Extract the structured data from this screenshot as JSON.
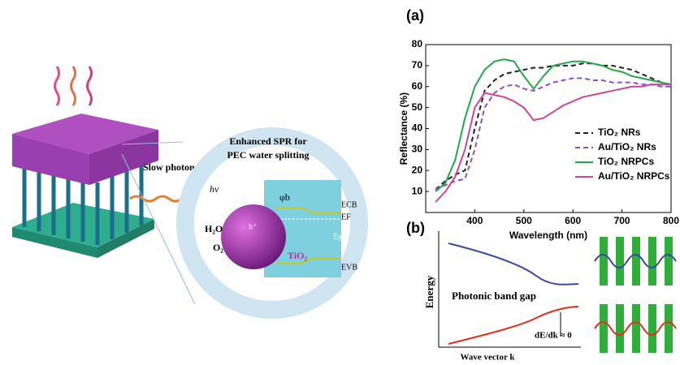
{
  "figure": {
    "panel_a": "(a)",
    "panel_b": "(b)"
  },
  "chart_data": {
    "type": "line",
    "xlabel": "Wavelength (nm)",
    "ylabel": "Reflectance (%)",
    "xlim": [
      300,
      800
    ],
    "xticks": [
      400,
      500,
      600,
      700,
      800
    ],
    "ylim": [
      0,
      80
    ],
    "yticks": [
      10,
      20,
      30,
      40,
      50,
      60,
      70,
      80
    ],
    "x": [
      320,
      340,
      360,
      380,
      400,
      420,
      440,
      460,
      480,
      500,
      520,
      540,
      560,
      580,
      600,
      620,
      640,
      660,
      680,
      700,
      720,
      740,
      760,
      780,
      800
    ],
    "series": [
      {
        "name": "TiO₂ NRs",
        "color": "#222222",
        "dashed": true,
        "values": [
          11,
          15,
          18,
          20,
          40,
          58,
          63,
          66,
          67,
          68,
          69,
          69,
          70,
          70,
          70,
          71,
          71,
          70,
          70,
          69,
          68,
          66,
          64,
          62,
          61
        ]
      },
      {
        "name": "Au/TiO₂ NRs",
        "color": "#8a4fd0",
        "dashed": true,
        "values": [
          11,
          13,
          15,
          16,
          30,
          50,
          57,
          60,
          61,
          59,
          58,
          60,
          62,
          63,
          64,
          64,
          63,
          63,
          62,
          62,
          62,
          61,
          61,
          60,
          60
        ]
      },
      {
        "name": "TiO₂ NRPCs",
        "color": "#22a84a",
        "dashed": false,
        "values": [
          10,
          14,
          25,
          45,
          60,
          68,
          72,
          73,
          72,
          65,
          59,
          65,
          70,
          71,
          72,
          72,
          71,
          70,
          68,
          67,
          65,
          64,
          63,
          62,
          61
        ]
      },
      {
        "name": "Au/TiO₂ NRPCs",
        "color": "#d0449a",
        "dashed": false,
        "values": [
          5,
          10,
          17,
          30,
          50,
          57,
          56,
          55,
          53,
          50,
          44,
          45,
          48,
          51,
          53,
          55,
          56,
          57,
          58,
          59,
          60,
          60,
          61,
          61,
          61
        ]
      }
    ],
    "legend": "lower right"
  },
  "diagram": {
    "slow_photons": "Slow photons",
    "title_line1": "Enhanced SPR for",
    "title_line2": "PEC water splitting",
    "hv": "hν",
    "phi": "φb",
    "h2o": "H₂O",
    "o2": "O₂",
    "hole": "h⁺",
    "tio2": "TiO₂",
    "ecb": "ECB",
    "ef": "EF",
    "eg": "Eg",
    "evb": "EVB"
  },
  "band_diagram": {
    "ylabel": "Energy",
    "xlabel": "Wave vector k",
    "gap": "Photonic band gap",
    "slope": "dE/dk ≈ 0"
  }
}
